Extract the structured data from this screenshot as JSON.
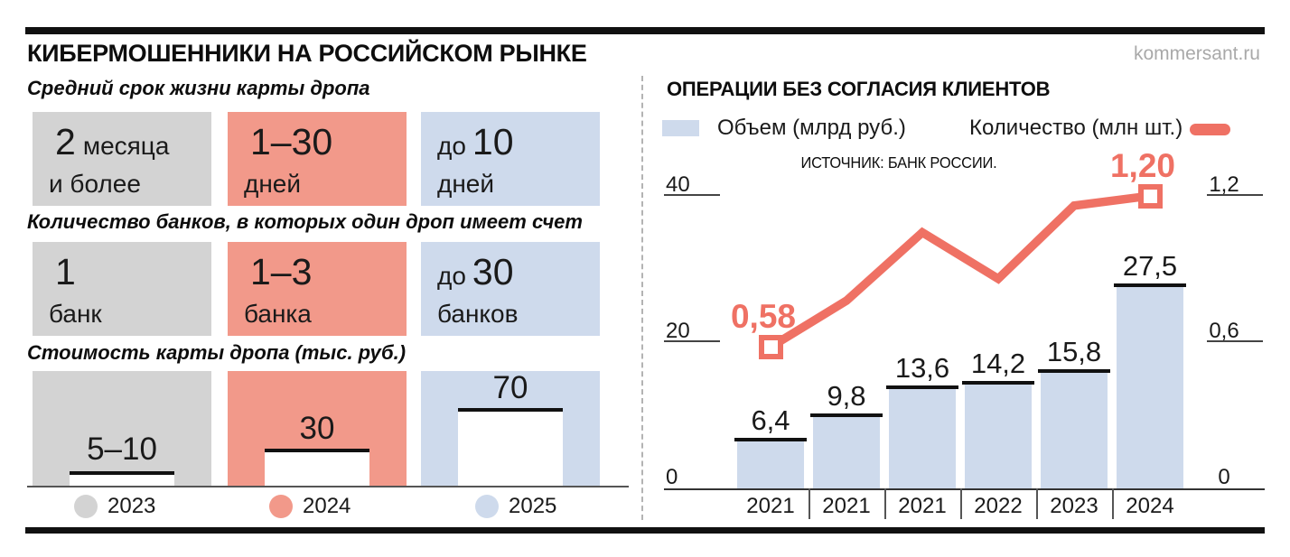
{
  "page": {
    "title": "КИБЕРМОШЕННИКИ НА РОССИЙСКОМ РЫНКЕ",
    "site": "kommersant.ru"
  },
  "colors": {
    "gray_2023": "#D3D3D3",
    "salmon_2024": "#F2998A",
    "blue_2025": "#CEDAEC",
    "count_line_red": "#EF7164",
    "volume_bar_blue": "#CEDAEC",
    "ink": "#111111"
  },
  "left_panel": {
    "sections": [
      {
        "subtitle": "Средний срок жизни карты дропа",
        "boxes": [
          {
            "pre": "",
            "big": "2",
            "post": "месяца",
            "line2": "и более"
          },
          {
            "pre": "",
            "big": "1–30",
            "post": "",
            "line2": "дней"
          },
          {
            "pre": "до",
            "big": "10",
            "post": "",
            "line2": "дней"
          }
        ]
      },
      {
        "subtitle": "Количество банков, в которых один дроп имеет счет",
        "boxes": [
          {
            "pre": "",
            "big": "1",
            "post": "",
            "line2": "банк"
          },
          {
            "pre": "",
            "big": "1–3",
            "post": "",
            "line2": "банка"
          },
          {
            "pre": "до",
            "big": "30",
            "post": "",
            "line2": "банков"
          }
        ]
      },
      {
        "subtitle": "Стоимость карты дропа (тыс. руб.)",
        "bars": [
          {
            "value": "5–10"
          },
          {
            "value": "30"
          },
          {
            "value": "70"
          }
        ]
      }
    ],
    "legend": [
      {
        "label": "2023"
      },
      {
        "label": "2024"
      },
      {
        "label": "2025"
      }
    ]
  },
  "right_panel": {
    "title": "ОПЕРАЦИИ БЕЗ СОГЛАСИЯ КЛИЕНТОВ",
    "legend": {
      "volume": "Объем (млрд руб.)",
      "count": "Количество (млн шт.)"
    },
    "source": "ИСТОЧНИК: БАНК РОССИИ."
  },
  "chart_data": {
    "type": "combo",
    "title": "ОПЕРАЦИИ БЕЗ СОГЛАСИЯ КЛИЕНТОВ",
    "source": "ИСТОЧНИК: БАНК РОССИИ.",
    "categories": [
      "2021",
      "2021",
      "2021",
      "2022",
      "2023",
      "2024"
    ],
    "series": [
      {
        "name": "Объем (млрд руб.)",
        "type": "bar",
        "axis": "left",
        "values": [
          6.4,
          9.8,
          13.6,
          14.2,
          15.8,
          27.5
        ],
        "labels": [
          "6,4",
          "9,8",
          "13,6",
          "14,2",
          "15,8",
          "27,5"
        ]
      },
      {
        "name": "Количество (млн шт.)",
        "type": "line",
        "axis": "right",
        "values": [
          0.58,
          0.77,
          1.05,
          0.86,
          1.16,
          1.2
        ],
        "point_labels": {
          "first": "0,58",
          "last": "1,20"
        }
      }
    ],
    "left_axis": {
      "range": [
        0,
        40
      ],
      "ticks": [
        {
          "label": "40",
          "value": 40
        },
        {
          "label": "20",
          "value": 20
        },
        {
          "label": "0",
          "value": 0
        }
      ]
    },
    "right_axis": {
      "range": [
        0,
        1.2
      ],
      "ticks": [
        {
          "label": "1,2",
          "value": 1.2
        },
        {
          "label": "0,6",
          "value": 0.6
        },
        {
          "label": "0",
          "value": 0
        }
      ]
    },
    "grid": false,
    "legend_position": "top"
  }
}
